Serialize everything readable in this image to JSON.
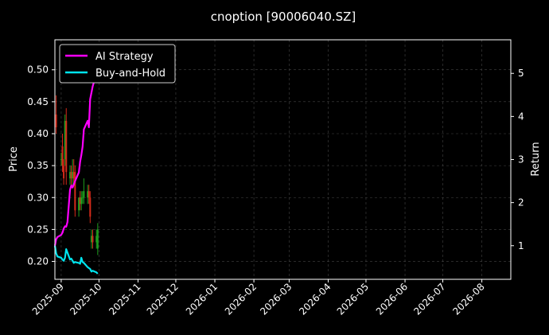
{
  "chart_data": {
    "type": "line",
    "title": "cnoption [90006040.SZ]",
    "ylabel_left": "Price",
    "ylabel_right": "Return",
    "xlabel": "",
    "x_range": [
      "2025-08-27",
      "2026-08-24"
    ],
    "ylim_left": [
      0.172,
      0.547
    ],
    "ylim_right": [
      0.22,
      5.78
    ],
    "y_ticks_left": [
      0.2,
      0.25,
      0.3,
      0.35,
      0.4,
      0.45,
      0.5
    ],
    "y_ticks_right": [
      1,
      2,
      3,
      4,
      5
    ],
    "x_ticks": [
      "2025-09",
      "2025-10",
      "2025-11",
      "2025-12",
      "2026-01",
      "2026-02",
      "2026-03",
      "2026-04",
      "2026-05",
      "2026-06",
      "2026-07",
      "2026-08"
    ],
    "x_tick_dates": [
      "2025-09-01",
      "2025-10-01",
      "2025-11-01",
      "2025-12-01",
      "2026-01-01",
      "2026-02-01",
      "2026-03-01",
      "2026-04-01",
      "2026-05-01",
      "2026-06-01",
      "2026-07-01",
      "2026-08-01"
    ],
    "grid": true,
    "legend_position": "top-left",
    "colors": {
      "background": "#000000",
      "grid": "#444444",
      "ai_strategy": "#ff00ff",
      "buy_and_hold": "#00e5ee",
      "candle_up": "#1e9e1e",
      "candle_down": "#d42a1a"
    },
    "series": [
      {
        "name": "AI Strategy",
        "axis": "right",
        "x": [
          "2025-08-27",
          "2025-08-28",
          "2025-08-29",
          "2025-09-01",
          "2025-09-02",
          "2025-09-03",
          "2025-09-04",
          "2025-09-05",
          "2025-09-06",
          "2025-09-08",
          "2025-09-09",
          "2025-09-10",
          "2025-09-11",
          "2025-09-12",
          "2025-09-15",
          "2025-09-16",
          "2025-09-17",
          "2025-09-18",
          "2025-09-19",
          "2025-09-22",
          "2025-09-23",
          "2025-09-24",
          "2025-09-25",
          "2025-09-26",
          "2025-09-29",
          "2025-09-30"
        ],
        "values": [
          1.0,
          1.15,
          1.2,
          1.25,
          1.3,
          1.4,
          1.45,
          1.44,
          1.55,
          2.3,
          2.4,
          2.35,
          2.42,
          2.5,
          2.7,
          2.95,
          3.1,
          3.3,
          3.7,
          3.9,
          3.75,
          4.4,
          4.55,
          4.7,
          5.0,
          5.25
        ]
      },
      {
        "name": "Buy-and-Hold",
        "axis": "right",
        "x": [
          "2025-08-27",
          "2025-08-28",
          "2025-08-29",
          "2025-09-01",
          "2025-09-02",
          "2025-09-03",
          "2025-09-04",
          "2025-09-05",
          "2025-09-08",
          "2025-09-09",
          "2025-09-10",
          "2025-09-11",
          "2025-09-12",
          "2025-09-15",
          "2025-09-16",
          "2025-09-17",
          "2025-09-18",
          "2025-09-19",
          "2025-09-22",
          "2025-09-23",
          "2025-09-24",
          "2025-09-25",
          "2025-09-26",
          "2025-09-29",
          "2025-09-30"
        ],
        "values": [
          1.0,
          0.82,
          0.75,
          0.72,
          0.68,
          0.65,
          0.72,
          0.92,
          0.68,
          0.7,
          0.65,
          0.6,
          0.62,
          0.6,
          0.58,
          0.72,
          0.62,
          0.6,
          0.5,
          0.48,
          0.46,
          0.4,
          0.42,
          0.38,
          0.35
        ]
      }
    ],
    "candlesticks": {
      "axis": "left",
      "dates": [
        "2025-08-28",
        "2025-09-01",
        "2025-09-02",
        "2025-09-03",
        "2025-09-04",
        "2025-09-05",
        "2025-09-08",
        "2025-09-09",
        "2025-09-10",
        "2025-09-11",
        "2025-09-12",
        "2025-09-15",
        "2025-09-16",
        "2025-09-17",
        "2025-09-18",
        "2025-09-19",
        "2025-09-22",
        "2025-09-23",
        "2025-09-24",
        "2025-09-25",
        "2025-09-26",
        "2025-09-29",
        "2025-09-30"
      ],
      "open": [
        0.43,
        0.36,
        0.38,
        0.35,
        0.36,
        0.42,
        0.33,
        0.34,
        0.33,
        0.34,
        0.34,
        0.28,
        0.3,
        0.29,
        0.3,
        0.3,
        0.3,
        0.31,
        0.3,
        0.23,
        0.24,
        0.23,
        0.22
      ],
      "close": [
        0.41,
        0.36,
        0.35,
        0.33,
        0.42,
        0.34,
        0.34,
        0.33,
        0.34,
        0.33,
        0.28,
        0.3,
        0.29,
        0.3,
        0.3,
        0.31,
        0.31,
        0.3,
        0.27,
        0.24,
        0.23,
        0.24,
        0.25
      ],
      "high": [
        0.46,
        0.37,
        0.4,
        0.36,
        0.43,
        0.44,
        0.35,
        0.35,
        0.36,
        0.36,
        0.35,
        0.3,
        0.31,
        0.31,
        0.31,
        0.33,
        0.32,
        0.32,
        0.31,
        0.25,
        0.25,
        0.25,
        0.26
      ],
      "low": [
        0.4,
        0.35,
        0.34,
        0.32,
        0.35,
        0.32,
        0.32,
        0.32,
        0.32,
        0.32,
        0.27,
        0.27,
        0.28,
        0.28,
        0.29,
        0.29,
        0.29,
        0.29,
        0.26,
        0.22,
        0.22,
        0.22,
        0.21
      ]
    }
  }
}
